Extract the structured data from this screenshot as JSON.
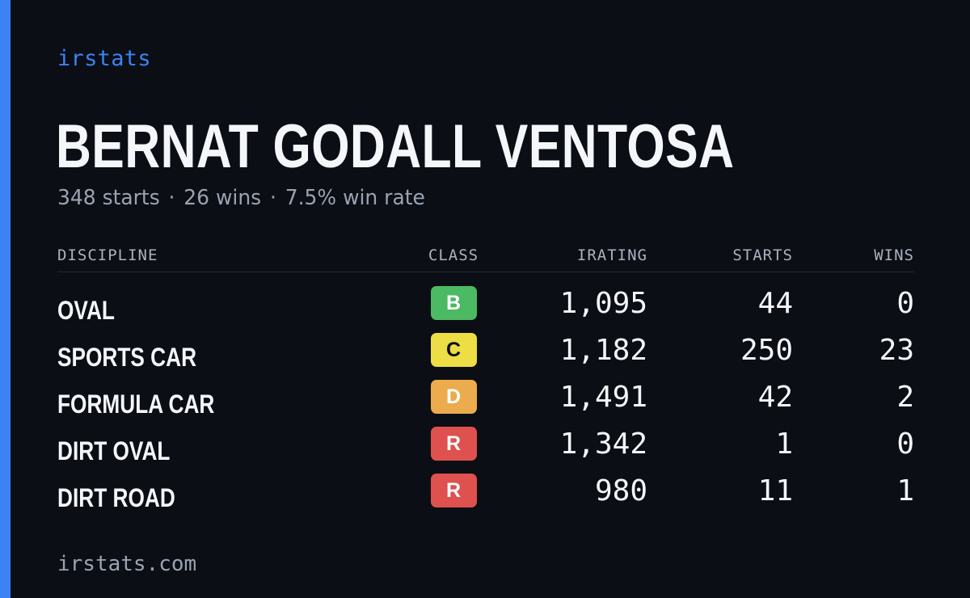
{
  "colors": {
    "accent": "#3b82f6",
    "background": "#0b0e14"
  },
  "brand": "irstats",
  "driver": {
    "name": "BERNAT GODALL VENTOSA",
    "starts_text": "348 starts",
    "wins_text": "26 wins",
    "win_rate_text": "7.5% win rate",
    "separator": "·"
  },
  "table": {
    "headers": {
      "discipline": "DISCIPLINE",
      "class": "CLASS",
      "irating": "IRATING",
      "starts": "STARTS",
      "wins": "WINS"
    },
    "rows": [
      {
        "discipline": "OVAL",
        "class": "B",
        "class_color": "#4cb963",
        "class_text_color": "#ffffff",
        "irating": "1,095",
        "starts": "44",
        "wins": "0"
      },
      {
        "discipline": "SPORTS CAR",
        "class": "C",
        "class_color": "#ecde44",
        "class_text_color": "#0b0e14",
        "irating": "1,182",
        "starts": "250",
        "wins": "23"
      },
      {
        "discipline": "FORMULA CAR",
        "class": "D",
        "class_color": "#ecab4c",
        "class_text_color": "#ffffff",
        "irating": "1,491",
        "starts": "42",
        "wins": "2"
      },
      {
        "discipline": "DIRT OVAL",
        "class": "R",
        "class_color": "#de514e",
        "class_text_color": "#ffffff",
        "irating": "1,342",
        "starts": "1",
        "wins": "0"
      },
      {
        "discipline": "DIRT ROAD",
        "class": "R",
        "class_color": "#de514e",
        "class_text_color": "#ffffff",
        "irating": "980",
        "starts": "11",
        "wins": "1"
      }
    ]
  },
  "footer": "irstats.com"
}
